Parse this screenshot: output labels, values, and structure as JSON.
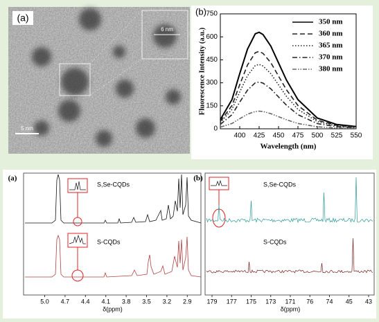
{
  "tem": {
    "label": "(a)",
    "inset_scale": "6 nm",
    "scale_bar": "5 nm"
  },
  "chart_data": [
    {
      "type": "line",
      "label": "(b)",
      "x_label": "Wavelength (nm)",
      "y_label": "Fluorescence Intensity (a.u.)",
      "x": [
        375,
        390,
        400,
        410,
        420,
        425,
        430,
        440,
        450,
        460,
        475,
        500,
        525,
        550
      ],
      "xlim": [
        375,
        550
      ],
      "xticks": [
        400,
        425,
        450,
        475,
        500,
        525,
        550
      ],
      "ylim": [
        0,
        750
      ],
      "yticks": [
        0,
        150,
        300,
        450,
        600,
        750
      ],
      "legend": "upper right",
      "series": [
        {
          "name": "350 nm",
          "color": "#000000",
          "dash": "solid",
          "values": [
            60,
            190,
            360,
            520,
            620,
            630,
            615,
            540,
            430,
            320,
            190,
            70,
            28,
            15
          ]
        },
        {
          "name": "360 nm",
          "color": "#222222",
          "dash": "dashed",
          "values": [
            48,
            152,
            288,
            416,
            496,
            505,
            492,
            432,
            344,
            256,
            152,
            56,
            22,
            12
          ]
        },
        {
          "name": "365 nm",
          "color": "#222222",
          "dash": "dotted",
          "values": [
            40,
            127,
            240,
            347,
            413,
            420,
            410,
            360,
            287,
            213,
            127,
            47,
            19,
            10
          ]
        },
        {
          "name": "370 nm",
          "color": "#222222",
          "dash": "dashdot",
          "values": [
            29,
            92,
            174,
            252,
            300,
            305,
            298,
            261,
            208,
            155,
            92,
            34,
            14,
            7
          ]
        },
        {
          "name": "380 nm",
          "color": "#666666",
          "dash": "dashdotdot",
          "values": [
            11,
            35,
            66,
            95,
            113,
            115,
            113,
            99,
            79,
            59,
            35,
            13,
            5,
            3
          ]
        }
      ]
    },
    {
      "type": "spectrum",
      "label": "(a)",
      "x_label": "δ(ppm)",
      "xlim": [
        5.25,
        2.75
      ],
      "xticks": [
        {
          "value": 5,
          "label": "5.0"
        },
        4.7,
        4.4,
        4.1,
        3.8,
        3.5,
        3.2,
        2.9
      ],
      "traces": [
        "S,Se-CQDs",
        "S-CQDs"
      ]
    },
    {
      "type": "spectrum",
      "label": "(b)",
      "x_label": "δ(ppm)",
      "broken_axis": true,
      "xticks": [
        179,
        177,
        175,
        173,
        171,
        76,
        74,
        45,
        43
      ],
      "traces": [
        "S,Se-CQDs",
        "S-CQDs"
      ]
    }
  ]
}
